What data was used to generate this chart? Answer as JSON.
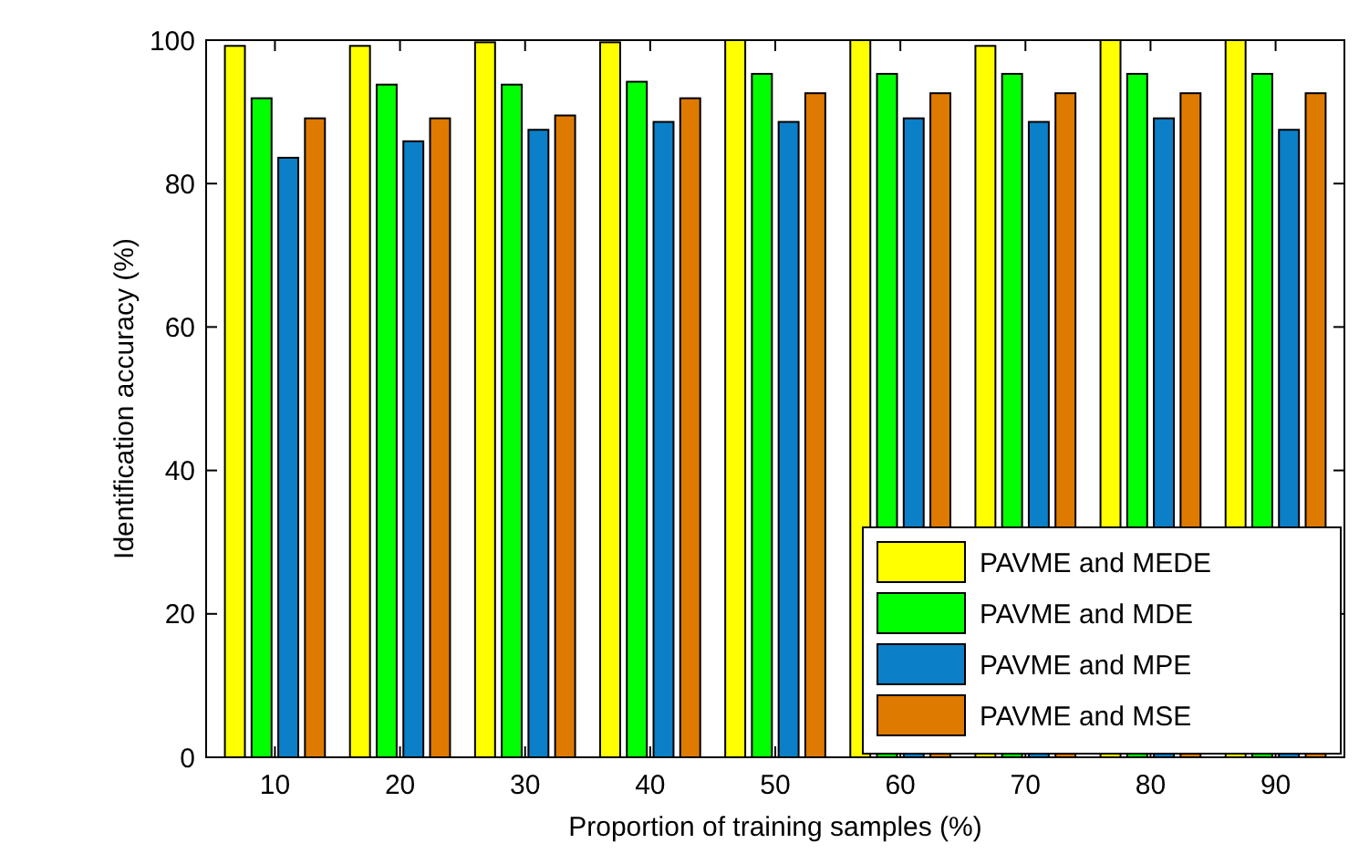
{
  "chart_data": {
    "type": "bar",
    "xlabel": "Proportion of training samples (%)",
    "ylabel": "Identification accuracy (%)",
    "categories": [
      "10",
      "20",
      "30",
      "40",
      "50",
      "60",
      "70",
      "80",
      "90"
    ],
    "series": [
      {
        "name": "PAVME and MEDE",
        "color": "#ffff00",
        "values": [
          99.2,
          99.2,
          99.7,
          99.7,
          100,
          100,
          99.2,
          100,
          100
        ]
      },
      {
        "name": "PAVME and MDE",
        "color": "#00ff00",
        "values": [
          91.9,
          93.8,
          93.8,
          94.2,
          95.3,
          95.3,
          95.3,
          95.3,
          95.3
        ]
      },
      {
        "name": "PAVME and MPE",
        "color": "#0b7fc7",
        "values": [
          83.6,
          85.9,
          87.5,
          88.6,
          88.6,
          89.1,
          88.6,
          89.1,
          87.5
        ]
      },
      {
        "name": "PAVME and MSE",
        "color": "#de7a00",
        "values": [
          89.1,
          89.1,
          89.5,
          91.9,
          92.6,
          92.6,
          92.6,
          92.6,
          92.6
        ]
      }
    ],
    "ylim": [
      0,
      100
    ],
    "yticks": [
      0,
      20,
      40,
      60,
      80,
      100
    ],
    "legend": "bottom right"
  }
}
